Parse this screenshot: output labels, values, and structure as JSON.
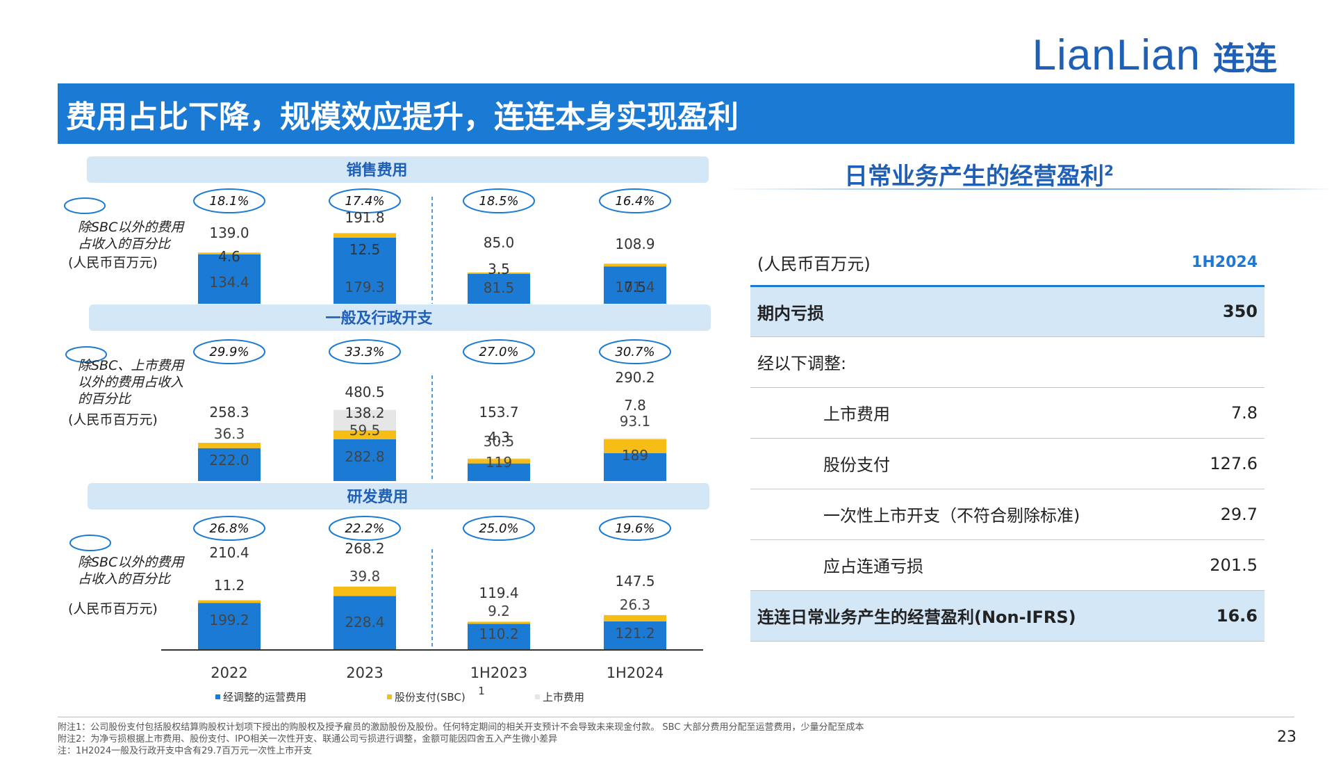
{
  "logo": {
    "en": "LianLian",
    "cn": "连连"
  },
  "title": "费用占比下降，规模效应提升，连连本身实现盈利",
  "chart_data": [
    {
      "type": "bar",
      "stacked": true,
      "title": "销售费用",
      "side_label": [
        "除SBC以外的费用",
        "占收入的百分比"
      ],
      "unit": "(人民币百万元)",
      "categories": [
        "2022",
        "2023",
        "1H2023",
        "1H2024"
      ],
      "pct": [
        "18.1%",
        "17.4%",
        "18.5%",
        "16.4%"
      ],
      "totals": [
        "139.0",
        "191.8",
        "85.0",
        "108.9"
      ],
      "series": [
        {
          "name": "经调整的运营费用",
          "values": [
            134.4,
            179.3,
            81.5,
            101.4
          ],
          "labels": [
            "134.4",
            "179.3",
            "81.5",
            "101.4"
          ]
        },
        {
          "name": "股份支付(SBC)",
          "values": [
            4.6,
            12.5,
            3.5,
            7.5
          ],
          "labels": [
            "4.6",
            "12.5",
            "3.5",
            "7.5"
          ]
        }
      ]
    },
    {
      "type": "bar",
      "stacked": true,
      "title": "一般及行政开支",
      "side_label": [
        "除SBC、上市费用",
        "以外的费用占收入",
        "的百分比"
      ],
      "unit": "(人民币百万元)",
      "categories": [
        "2022",
        "2023",
        "1H2023",
        "1H2024"
      ],
      "pct": [
        "29.9%",
        "33.3%",
        "27.0%",
        "30.7%"
      ],
      "totals": [
        "258.3",
        "480.5",
        "153.7",
        "290.2"
      ],
      "series": [
        {
          "name": "经调整的运营费用",
          "values": [
            222.0,
            282.8,
            119,
            189
          ],
          "labels": [
            "222.0",
            "282.8",
            "119",
            "189"
          ]
        },
        {
          "name": "股份支付(SBC)",
          "values": [
            36.3,
            59.5,
            30.5,
            93.1
          ],
          "labels": [
            "36.3",
            "59.5",
            "30.5",
            "93.1"
          ]
        },
        {
          "name": "上市费用",
          "values": [
            0,
            138.2,
            4.3,
            7.8
          ],
          "labels": [
            "",
            "138.2",
            "4.3",
            "7.8"
          ]
        }
      ]
    },
    {
      "type": "bar",
      "stacked": true,
      "title": "研发费用",
      "side_label": [
        "除SBC以外的费用",
        "占收入的百分比"
      ],
      "unit": "(人民币百万元)",
      "categories": [
        "2022",
        "2023",
        "1H2023",
        "1H2024"
      ],
      "pct": [
        "26.8%",
        "22.2%",
        "25.0%",
        "19.6%"
      ],
      "totals": [
        "210.4",
        "268.2",
        "119.4",
        "147.5"
      ],
      "series": [
        {
          "name": "经调整的运营费用",
          "values": [
            199.2,
            228.4,
            110.2,
            121.2
          ],
          "labels": [
            "199.2",
            "228.4",
            "110.2",
            "121.2"
          ]
        },
        {
          "name": "股份支付(SBC)",
          "values": [
            11.2,
            39.8,
            9.2,
            26.3
          ],
          "labels": [
            "11.2",
            "39.8",
            "9.2",
            "26.3"
          ]
        }
      ]
    }
  ],
  "x_footnote_mark": "1",
  "legend": [
    {
      "name": "经调整的运营费用",
      "color": "#1b7ad3"
    },
    {
      "name": "股份支付(SBC)",
      "color": "#f7bd17"
    },
    {
      "name": "上市费用",
      "color": "#e6e6e6"
    }
  ],
  "colors": {
    "adjusted": "#1b7ad3",
    "sbc": "#f7bd17",
    "listing": "#e6e6e6",
    "accent": "#1f5fb5"
  },
  "right_panel": {
    "title": "日常业务产生的经营盈利",
    "title_sup": "2",
    "unit_label": "(人民币百万元)",
    "period": "1H2024",
    "rows": [
      {
        "label": "期内亏损",
        "value": "350",
        "style": "hl"
      },
      {
        "label": "经以下调整:",
        "value": "",
        "style": "plain"
      },
      {
        "label": "上市费用",
        "value": "7.8",
        "style": "ind"
      },
      {
        "label": "股份支付",
        "value": "127.6",
        "style": "ind"
      },
      {
        "label": "一次性上市开支（不符合剔除标准)",
        "value": "29.7",
        "style": "ind"
      },
      {
        "label": "应占连通亏损",
        "value": "201.5",
        "style": "ind"
      },
      {
        "label": "连连日常业务产生的经营盈利(Non-IFRS)",
        "value": "16.6",
        "style": "hl"
      }
    ]
  },
  "footnotes": [
    "附注1：公司股份支付包括股权结算购股权计划项下授出的购股权及授予雇员的激励股份及股份。任何特定期间的相关开支预计不会导致未来现金付款。 SBC 大部分费用分配至运营费用，少量分配至成本",
    "附注2：为净亏损根据上市费用、股份支付、IPO相关一次性开支、联通公司亏损进行调整，金额可能因四舍五入产生微小差异",
    "注：1H2024一般及行政开支中含有29.7百万元一次性上市开支"
  ],
  "page_number": "23"
}
